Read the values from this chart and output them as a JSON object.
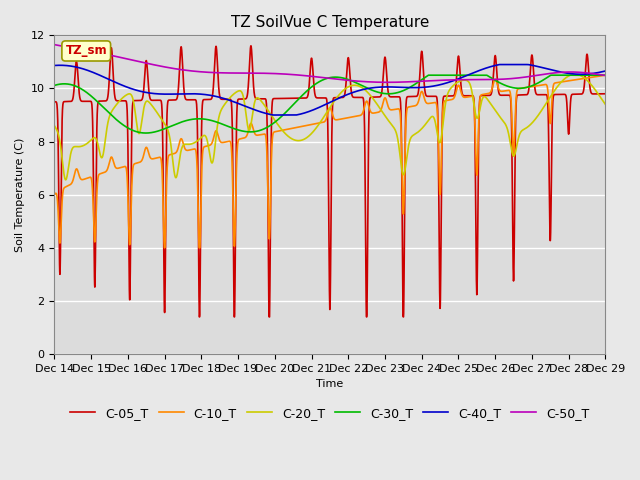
{
  "title": "TZ SoilVue C Temperature",
  "xlabel": "Time",
  "ylabel": "Soil Temperature (C)",
  "ylim": [
    0,
    12
  ],
  "yticks": [
    0,
    2,
    4,
    6,
    8,
    10,
    12
  ],
  "x_labels": [
    "Dec 14",
    "Dec 15",
    "Dec 16",
    "Dec 17",
    "Dec 18",
    "Dec 19",
    "Dec 20",
    "Dec 21",
    "Dec 22",
    "Dec 23",
    "Dec 24",
    "Dec 25",
    "Dec 26",
    "Dec 27",
    "Dec 28",
    "Dec 29"
  ],
  "legend_labels": [
    "C-05_T",
    "C-10_T",
    "C-20_T",
    "C-30_T",
    "C-40_T",
    "C-50_T"
  ],
  "colors": [
    "#cc0000",
    "#ff8800",
    "#cccc00",
    "#00bb00",
    "#0000cc",
    "#bb00bb"
  ],
  "annotation_text": "TZ_sm",
  "annotation_color": "#cc0000",
  "annotation_bg": "#ffffcc",
  "background_color": "#dcdcdc",
  "title_fontsize": 11,
  "axis_fontsize": 8,
  "legend_fontsize": 9,
  "linewidth": 1.2
}
